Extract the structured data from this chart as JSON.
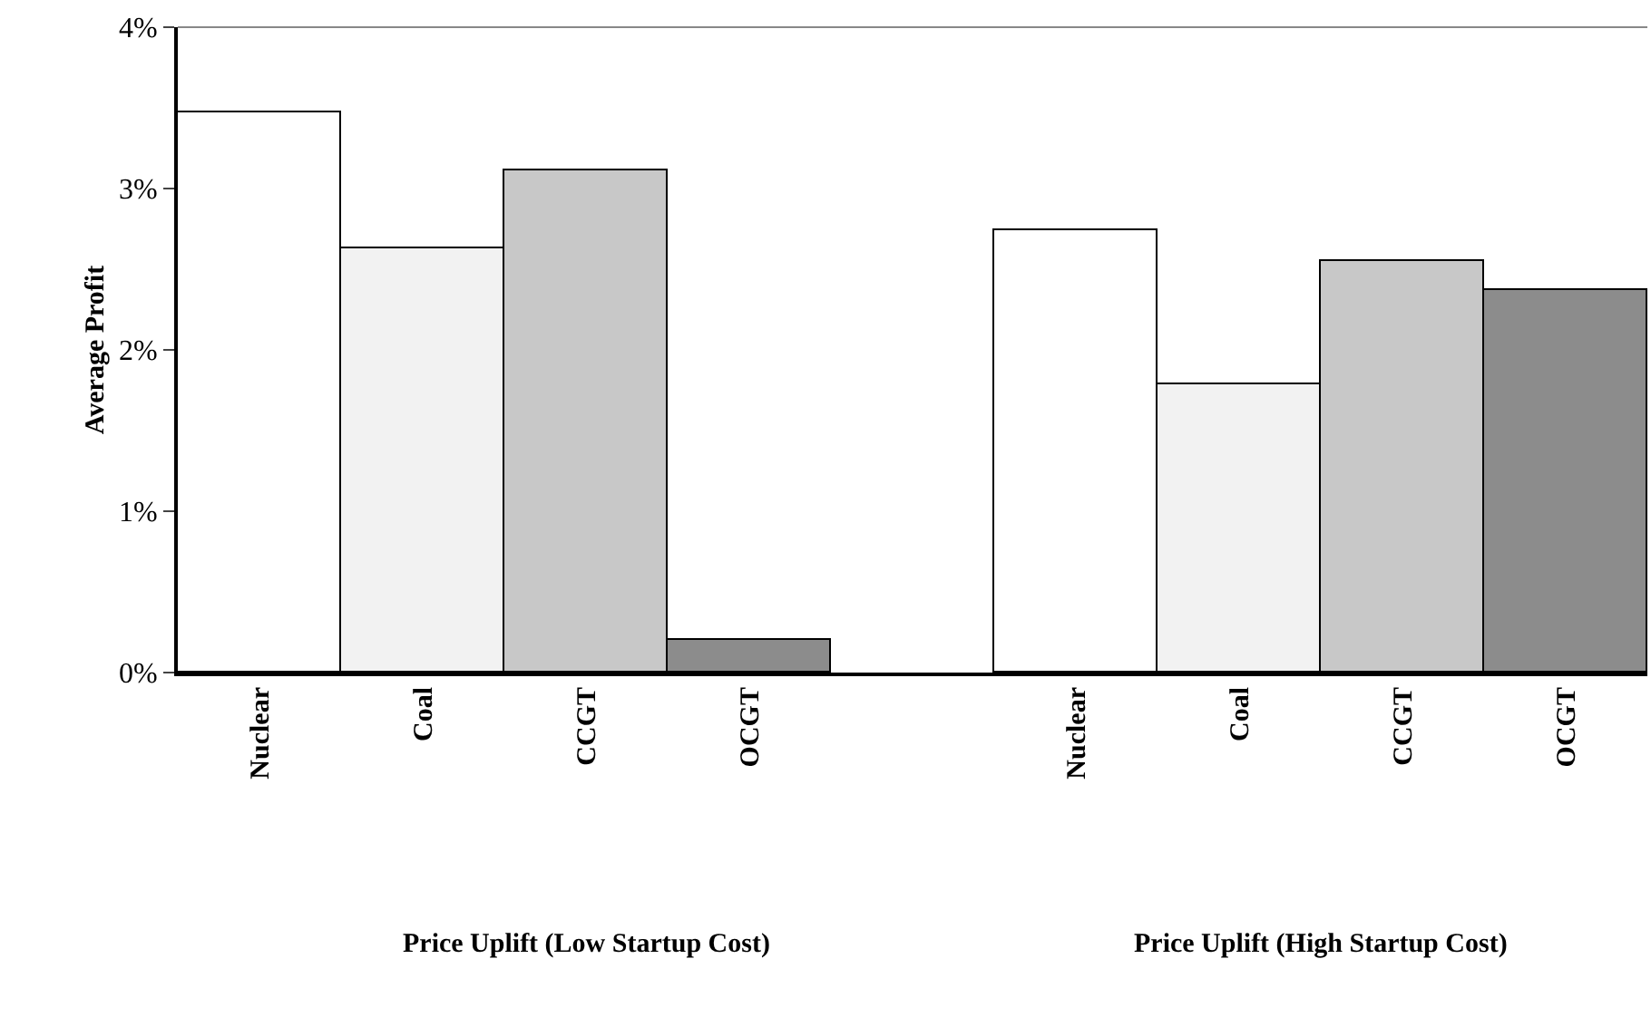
{
  "chart_data": {
    "type": "bar",
    "ylabel": "Average Profit",
    "categories": [
      "Nuclear",
      "Coal",
      "CCGT",
      "OCGT",
      null,
      "Nuclear",
      "Coal",
      "CCGT",
      "OCGT"
    ],
    "values": [
      3.47,
      2.63,
      3.11,
      0.2,
      null,
      2.74,
      1.79,
      2.55,
      2.37
    ],
    "colors": [
      "#ffffff",
      "#f2f2f2",
      "#c8c8c8",
      "#8c8c8c",
      "#ffffff",
      "#ffffff",
      "#f2f2f2",
      "#c8c8c8",
      "#8c8c8c"
    ],
    "ylim": [
      0,
      4
    ],
    "yticks": [
      {
        "value": 0,
        "label": "0%"
      },
      {
        "value": 1,
        "label": "1%"
      },
      {
        "value": 2,
        "label": "2%"
      },
      {
        "value": 3,
        "label": "3%"
      },
      {
        "value": 4,
        "label": "4%"
      }
    ],
    "annotations": [
      "Price Uplift (Low Startup Cost)",
      "Price Uplift (High Startup Cost)"
    ],
    "grid": false,
    "legend": false
  }
}
